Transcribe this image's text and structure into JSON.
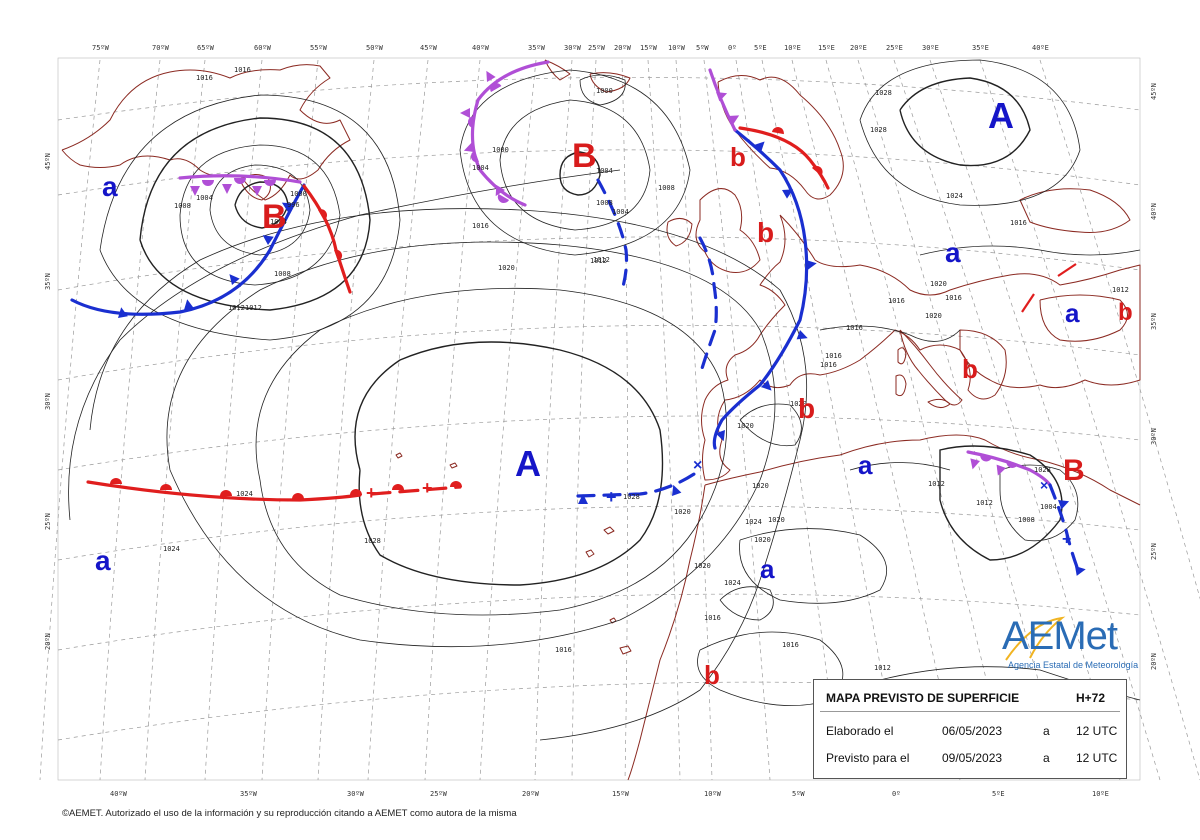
{
  "top_lon_labels": [
    "75ºW",
    "70ºW",
    "65ºW",
    "60ºW",
    "55ºW",
    "50ºW",
    "45ºW",
    "40ºW",
    "35ºW",
    "30ºW",
    "25ºW",
    "20ºW",
    "15ºW",
    "10ºW",
    "5ºW",
    "0º",
    "5ºE",
    "10ºE",
    "15ºE",
    "20ºE",
    "25ºE",
    "30ºE",
    "35ºE",
    "40ºE"
  ],
  "bottom_lon_labels": [
    "40ºW",
    "35ºW",
    "30ºW",
    "25ºW",
    "20ºW",
    "15ºW",
    "10ºW",
    "5ºW",
    "0º",
    "5ºE",
    "10ºE"
  ],
  "left_lat_labels": [
    "45ºN",
    "35ºN",
    "30ºN",
    "25ºN",
    "20ºN"
  ],
  "right_lat_labels": [
    "45ºN",
    "40ºN",
    "35ºN",
    "30ºN",
    "25ºN",
    "20ºN"
  ],
  "isobar_labels": [
    {
      "text": "1016"
    },
    {
      "text": "1016"
    },
    {
      "text": "1008"
    },
    {
      "text": "1004"
    },
    {
      "text": "996"
    },
    {
      "text": "1000"
    },
    {
      "text": "1004"
    },
    {
      "text": "1008"
    },
    {
      "text": "1012"
    },
    {
      "text": "1000"
    },
    {
      "text": "1004"
    },
    {
      "text": "1008"
    },
    {
      "text": "1000"
    },
    {
      "text": "1004"
    },
    {
      "text": "1016"
    },
    {
      "text": "1020"
    },
    {
      "text": "1012"
    },
    {
      "text": "1008"
    },
    {
      "text": "1004"
    },
    {
      "text": "1028"
    },
    {
      "text": "1028"
    },
    {
      "text": "1024"
    },
    {
      "text": "1028"
    },
    {
      "text": "1024"
    },
    {
      "text": "1024"
    },
    {
      "text": "1028"
    },
    {
      "text": "1020"
    },
    {
      "text": "1020"
    },
    {
      "text": "1020"
    },
    {
      "text": "1020"
    },
    {
      "text": "1024"
    },
    {
      "text": "1020"
    },
    {
      "text": "1016"
    },
    {
      "text": "1016"
    },
    {
      "text": "1016"
    },
    {
      "text": "1012"
    },
    {
      "text": "1012"
    },
    {
      "text": "1012"
    },
    {
      "text": "1008"
    },
    {
      "text": "1004"
    },
    {
      "text": "1012"
    },
    {
      "text": "1012"
    },
    {
      "text": "1016"
    },
    {
      "text": "1016"
    },
    {
      "text": "1016"
    },
    {
      "text": "1016"
    },
    {
      "text": "1020"
    },
    {
      "text": "1024"
    },
    {
      "text": "1020"
    },
    {
      "text": "1028"
    },
    {
      "text": "1020"
    },
    {
      "text": "1016"
    },
    {
      "text": "1020"
    },
    {
      "text": "1012"
    },
    {
      "text": "1016"
    }
  ],
  "pressure_systems": [
    {
      "symbol": "A",
      "kind": "high"
    },
    {
      "symbol": "A",
      "kind": "high"
    },
    {
      "symbol": "a",
      "kind": "high"
    },
    {
      "symbol": "a",
      "kind": "high"
    },
    {
      "symbol": "a",
      "kind": "high"
    },
    {
      "symbol": "a",
      "kind": "high"
    },
    {
      "symbol": "a",
      "kind": "high"
    },
    {
      "symbol": "a",
      "kind": "high"
    },
    {
      "symbol": "B",
      "kind": "low"
    },
    {
      "symbol": "B",
      "kind": "low"
    },
    {
      "symbol": "B",
      "kind": "low"
    },
    {
      "symbol": "b",
      "kind": "low"
    },
    {
      "symbol": "b",
      "kind": "low"
    },
    {
      "symbol": "b",
      "kind": "low"
    },
    {
      "symbol": "b",
      "kind": "low"
    },
    {
      "symbol": "b",
      "kind": "low"
    },
    {
      "symbol": "b",
      "kind": "low"
    }
  ],
  "colors": {
    "high": "#1515c8",
    "low": "#d81c1c",
    "cold_front": "#1a2fd0",
    "warm_front": "#e01e1e",
    "occluded": "#b04fd6",
    "coast": "#8b2a22",
    "isobar": "#222222",
    "grid": "#9a9a9a"
  },
  "info_box": {
    "title": "MAPA PREVISTO DE SUPERFICIE",
    "horizon": "H+72",
    "issued_label": "Elaborado el",
    "issued_date": "06/05/2023",
    "issued_a": "a",
    "issued_time": "12 UTC",
    "valid_label": "Previsto para el",
    "valid_date": "09/05/2023",
    "valid_a": "a",
    "valid_time": "12 UTC"
  },
  "logo": {
    "wordmark": "AEMet",
    "subtitle": "Agencia Estatal de Meteorología"
  },
  "credit": "©AEMET. Autorizado el uso de la información y su reproducción citando a AEMET como autora de la misma"
}
